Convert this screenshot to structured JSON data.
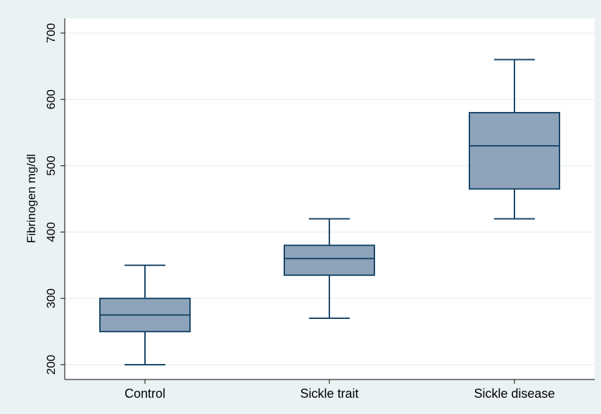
{
  "chart_data": {
    "type": "box",
    "title": "",
    "xlabel": "",
    "ylabel": "Fibrinogen mg/dl",
    "ylim": [
      180,
      715
    ],
    "yticks": [
      200,
      300,
      400,
      500,
      600,
      700
    ],
    "ytick_labels": [
      "200",
      "300",
      "400",
      "500",
      "600",
      "700"
    ],
    "grid": true,
    "categories": [
      "Control",
      "Sickle trait",
      "Sickle disease"
    ],
    "boxes": [
      {
        "category": "Control",
        "whisker_low": 200,
        "q1": 250,
        "median": 275,
        "q3": 300,
        "whisker_high": 350
      },
      {
        "category": "Sickle trait",
        "whisker_low": 270,
        "q1": 335,
        "median": 360,
        "q3": 380,
        "whisker_high": 420
      },
      {
        "category": "Sickle disease",
        "whisker_low": 420,
        "q1": 465,
        "median": 530,
        "q3": 580,
        "whisker_high": 660
      }
    ],
    "colors": {
      "background": "#eaf2f3",
      "plot_background": "#ffffff",
      "grid": "#eaf2f3",
      "box_fill": "#8ea4bb",
      "box_stroke": "#1a4769",
      "axis": "#000000"
    }
  }
}
